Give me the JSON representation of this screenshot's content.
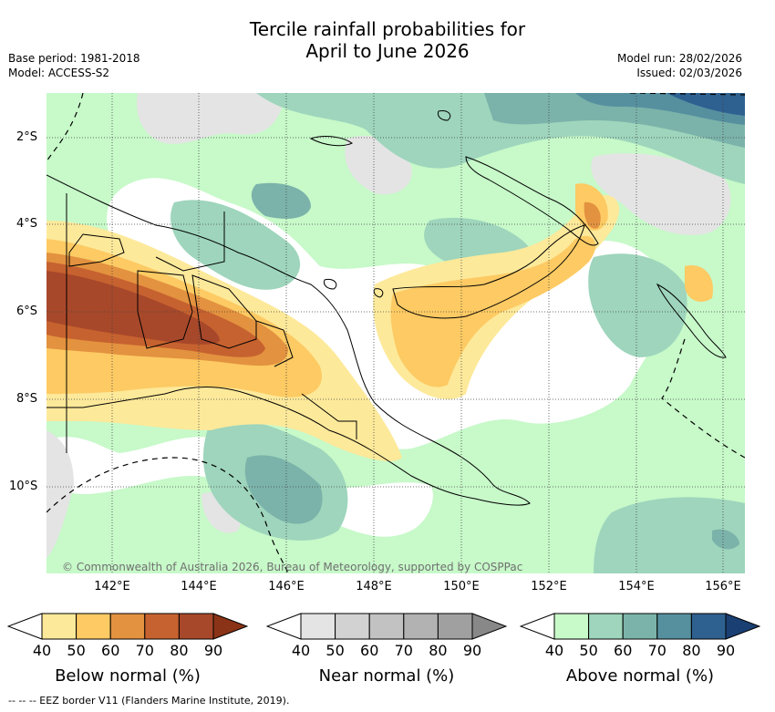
{
  "title": {
    "line1": "Tercile rainfall probabilities for",
    "line2": "April to June 2026"
  },
  "meta": {
    "base_period": "Base period: 1981-2018",
    "model": "Model: ACCESS-S2",
    "model_run": "Model run: 28/02/2026",
    "issued": "Issued: 02/03/2026"
  },
  "map": {
    "copyright": "© Commonwealth of Australia 2026, Bureau of Meteorology, supported by COSPPac",
    "lat_labels": [
      "2°S",
      "4°S",
      "6°S",
      "8°S",
      "10°S"
    ],
    "lon_labels": [
      "142°E",
      "144°E",
      "146°E",
      "148°E",
      "150°E",
      "152°E",
      "154°E",
      "156°E"
    ]
  },
  "colorbars": [
    {
      "title": "Below normal (%)",
      "ticks": [
        "40",
        "50",
        "60",
        "70",
        "80",
        "90"
      ],
      "colors": [
        "#ffffff",
        "#fde99a",
        "#fdca63",
        "#e3923f",
        "#c6622f",
        "#a8482a",
        "#8a3316"
      ]
    },
    {
      "title": "Near normal (%)",
      "ticks": [
        "40",
        "50",
        "60",
        "70",
        "80",
        "90"
      ],
      "colors": [
        "#ffffff",
        "#e4e4e4",
        "#d2d2d2",
        "#c2c2c2",
        "#b2b2b2",
        "#a0a0a0",
        "#888888"
      ]
    },
    {
      "title": "Above normal (%)",
      "ticks": [
        "40",
        "50",
        "60",
        "70",
        "80",
        "90"
      ],
      "colors": [
        "#ffffff",
        "#c7f9c9",
        "#9ed5bc",
        "#7bb3aa",
        "#56909f",
        "#2e6090",
        "#1a3f73"
      ]
    }
  ],
  "footer": "--  --  -- EEZ border V11 (Flanders Marine Institute, 2019)."
}
